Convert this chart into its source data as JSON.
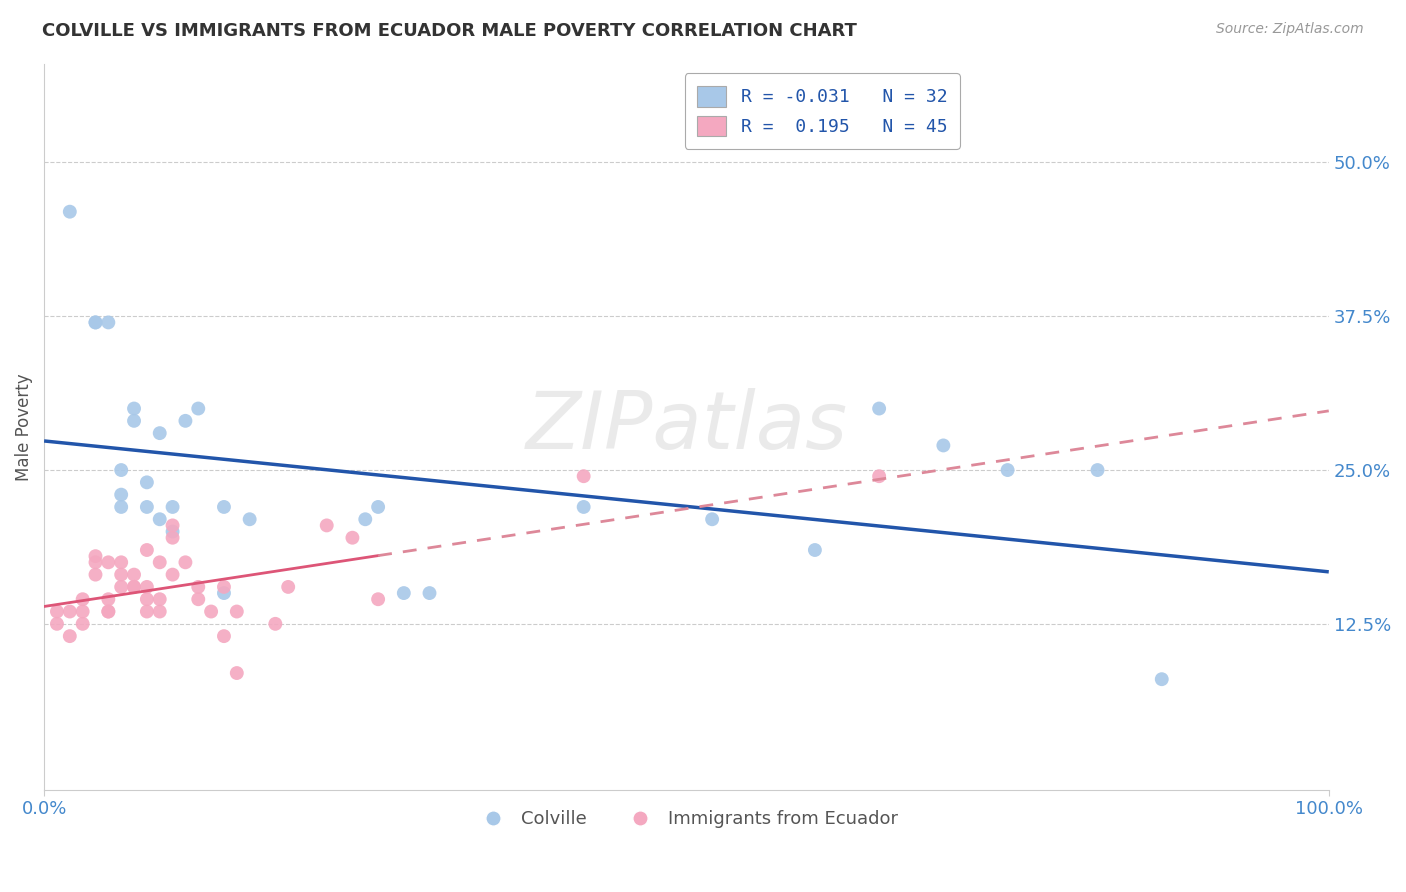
{
  "title": "COLVILLE VS IMMIGRANTS FROM ECUADOR MALE POVERTY CORRELATION CHART",
  "source": "Source: ZipAtlas.com",
  "xlabel": "",
  "ylabel": "Male Poverty",
  "xlim": [
    0,
    1.0
  ],
  "ylim": [
    -0.01,
    0.58
  ],
  "yticks": [
    0.125,
    0.25,
    0.375,
    0.5
  ],
  "ytick_labels": [
    "12.5%",
    "25.0%",
    "37.5%",
    "50.0%"
  ],
  "xticks": [
    0.0,
    1.0
  ],
  "xtick_labels": [
    "0.0%",
    "100.0%"
  ],
  "colville_R": -0.031,
  "colville_N": 32,
  "ecuador_R": 0.195,
  "ecuador_N": 45,
  "colville_color": "#a8c8e8",
  "ecuador_color": "#f4a8c0",
  "colville_line_color": "#2255aa",
  "ecuador_line_color": "#dd5577",
  "ecuador_dashed_color": "#dd8899",
  "background_color": "#ffffff",
  "grid_color": "#cccccc",
  "legend_label_1": "Colville",
  "legend_label_2": "Immigrants from Ecuador",
  "watermark": "ZIPatlas",
  "colville_x": [
    0.02,
    0.04,
    0.05,
    0.06,
    0.06,
    0.07,
    0.07,
    0.08,
    0.08,
    0.09,
    0.09,
    0.1,
    0.1,
    0.11,
    0.12,
    0.14,
    0.14,
    0.16,
    0.25,
    0.26,
    0.28,
    0.3,
    0.42,
    0.52,
    0.6,
    0.65,
    0.7,
    0.75,
    0.82,
    0.87,
    0.04,
    0.06
  ],
  "colville_y": [
    0.46,
    0.37,
    0.37,
    0.25,
    0.23,
    0.3,
    0.29,
    0.24,
    0.22,
    0.21,
    0.28,
    0.22,
    0.2,
    0.29,
    0.3,
    0.22,
    0.15,
    0.21,
    0.21,
    0.22,
    0.15,
    0.15,
    0.22,
    0.21,
    0.185,
    0.3,
    0.27,
    0.25,
    0.25,
    0.08,
    0.37,
    0.22
  ],
  "ecuador_x": [
    0.01,
    0.01,
    0.02,
    0.02,
    0.03,
    0.03,
    0.03,
    0.04,
    0.04,
    0.04,
    0.05,
    0.05,
    0.05,
    0.05,
    0.06,
    0.06,
    0.06,
    0.07,
    0.07,
    0.07,
    0.08,
    0.08,
    0.08,
    0.08,
    0.09,
    0.09,
    0.09,
    0.1,
    0.1,
    0.1,
    0.11,
    0.12,
    0.12,
    0.13,
    0.14,
    0.14,
    0.15,
    0.15,
    0.18,
    0.19,
    0.22,
    0.24,
    0.26,
    0.42,
    0.65
  ],
  "ecuador_y": [
    0.135,
    0.125,
    0.135,
    0.115,
    0.125,
    0.145,
    0.135,
    0.165,
    0.18,
    0.175,
    0.175,
    0.145,
    0.135,
    0.135,
    0.155,
    0.175,
    0.165,
    0.165,
    0.155,
    0.155,
    0.185,
    0.155,
    0.145,
    0.135,
    0.135,
    0.145,
    0.175,
    0.165,
    0.195,
    0.205,
    0.175,
    0.145,
    0.155,
    0.135,
    0.155,
    0.115,
    0.135,
    0.085,
    0.125,
    0.155,
    0.205,
    0.195,
    0.145,
    0.245,
    0.245
  ]
}
